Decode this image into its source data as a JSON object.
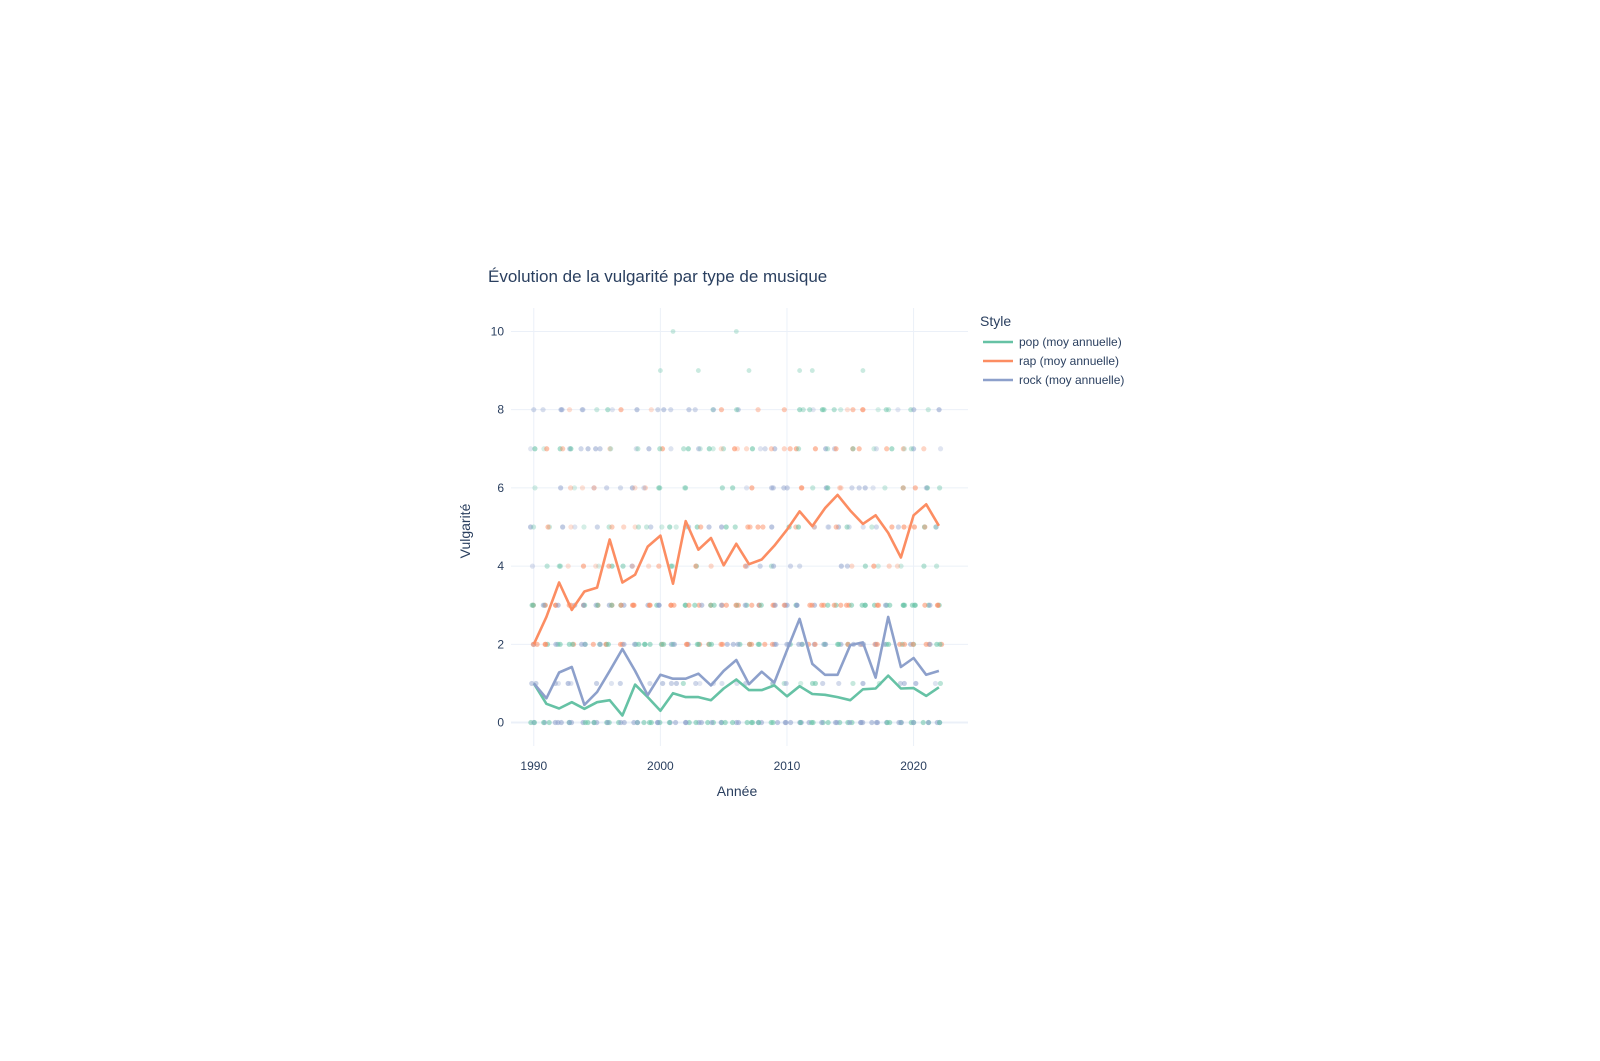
{
  "chart_data": {
    "type": "line",
    "title": "Évolution de la vulgarité par type de musique",
    "xlabel": "Année",
    "ylabel": "Vulgarité",
    "xlim": [
      1988.2,
      2024.3
    ],
    "ylim": [
      -0.6,
      10.6
    ],
    "x_ticks": [
      1990,
      2000,
      2010,
      2020
    ],
    "y_ticks": [
      0,
      2,
      4,
      6,
      8,
      10
    ],
    "grid": true,
    "legend": {
      "title": "Style",
      "position": "top-right"
    },
    "series": [
      {
        "name": "pop (moy annuelle)",
        "color": "#66c2a5",
        "x": [
          1990,
          1991,
          1992,
          1993,
          1994,
          1995,
          1996,
          1997,
          1998,
          1999,
          2000,
          2001,
          2002,
          2003,
          2004,
          2005,
          2006,
          2007,
          2008,
          2009,
          2010,
          2011,
          2012,
          2013,
          2014,
          2015,
          2016,
          2017,
          2018,
          2019,
          2020,
          2021,
          2022
        ],
        "values": [
          1.0,
          0.48,
          0.36,
          0.52,
          0.35,
          0.52,
          0.57,
          0.18,
          0.97,
          0.65,
          0.3,
          0.75,
          0.65,
          0.65,
          0.57,
          0.87,
          1.1,
          0.83,
          0.83,
          0.95,
          0.67,
          0.93,
          0.73,
          0.71,
          0.65,
          0.57,
          0.85,
          0.87,
          1.2,
          0.87,
          0.88,
          0.68,
          0.9
        ]
      },
      {
        "name": "rap (moy annuelle)",
        "color": "#fc8d62",
        "x": [
          1990,
          1991,
          1992,
          1993,
          1994,
          1995,
          1996,
          1997,
          1998,
          1999,
          2000,
          2001,
          2002,
          2003,
          2004,
          2005,
          2006,
          2007,
          2008,
          2009,
          2010,
          2011,
          2012,
          2013,
          2014,
          2015,
          2016,
          2017,
          2018,
          2019,
          2020,
          2021,
          2022
        ],
        "values": [
          2.0,
          2.7,
          3.58,
          2.88,
          3.35,
          3.45,
          4.68,
          3.58,
          3.78,
          4.5,
          4.78,
          3.55,
          5.15,
          4.42,
          4.72,
          4.02,
          4.57,
          4.05,
          4.17,
          4.52,
          4.93,
          5.4,
          5.02,
          5.48,
          5.82,
          5.42,
          5.08,
          5.3,
          4.85,
          4.22,
          5.3,
          5.58,
          5.03
        ]
      },
      {
        "name": "rock (moy annuelle)",
        "color": "#8da0cb",
        "x": [
          1990,
          1991,
          1992,
          1993,
          1994,
          1995,
          1996,
          1997,
          1998,
          1999,
          2000,
          2001,
          2002,
          2003,
          2004,
          2005,
          2006,
          2007,
          2008,
          2009,
          2010,
          2011,
          2012,
          2013,
          2014,
          2015,
          2016,
          2017,
          2018,
          2019,
          2020,
          2021,
          2022
        ],
        "values": [
          1.0,
          0.62,
          1.28,
          1.42,
          0.45,
          0.78,
          1.32,
          1.88,
          1.32,
          0.7,
          1.22,
          1.12,
          1.12,
          1.25,
          0.95,
          1.32,
          1.6,
          0.98,
          1.3,
          1.02,
          1.85,
          2.65,
          1.5,
          1.22,
          1.22,
          1.98,
          2.05,
          1.15,
          2.7,
          1.42,
          1.65,
          1.22,
          1.32
        ]
      }
    ],
    "scatter": {
      "description_values": "individual songs by year and vulgarity score",
      "x_range": [
        1990,
        2022
      ],
      "pop_color": "#66c2a5",
      "rap_color": "#fc8d62",
      "rock_color": "#8da0cb",
      "high_points_pop": [
        [
          2000,
          9
        ],
        [
          2001,
          10
        ],
        [
          2003,
          9
        ],
        [
          2006,
          10
        ],
        [
          2007,
          9
        ],
        [
          2011,
          9
        ],
        [
          2012,
          9
        ],
        [
          2016,
          9
        ]
      ]
    }
  }
}
